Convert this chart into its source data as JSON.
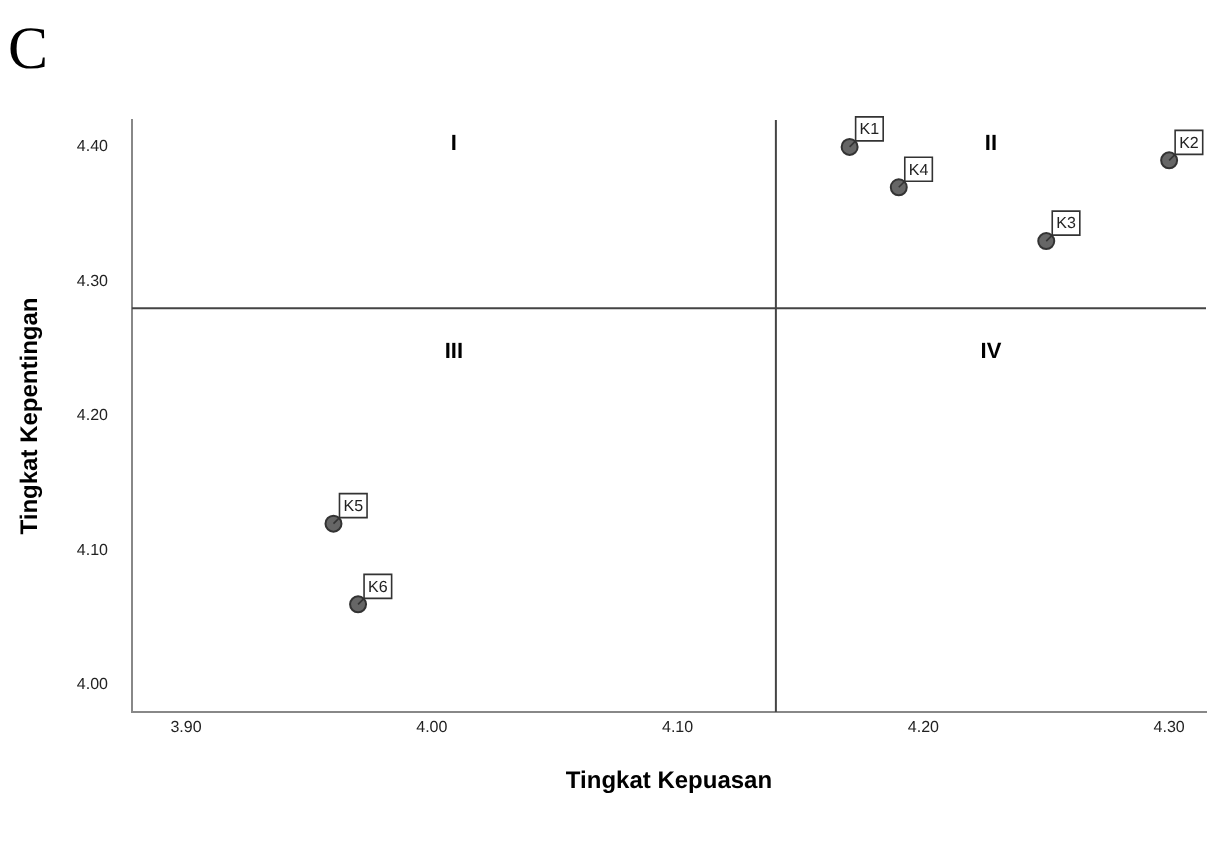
{
  "chart_data": {
    "type": "scatter",
    "title": "C",
    "xlabel": "Tingkat Kepuasan",
    "ylabel": "Tingkat Kepentingan",
    "x": [
      4.17,
      4.3,
      4.25,
      4.19,
      3.96,
      3.97
    ],
    "series": [
      {
        "color": "#666666",
        "values": [
          4.4,
          4.39,
          4.33,
          4.37,
          4.12,
          4.06
        ]
      }
    ],
    "xlim": [
      3.878,
      4.315
    ],
    "xticks": [
      {
        "value": 3.9,
        "label": "3.90"
      },
      {
        "value": 4.0,
        "label": "4.00"
      },
      {
        "value": 4.1,
        "label": "4.10"
      },
      {
        "value": 4.2,
        "label": "4.20"
      },
      {
        "value": 4.3,
        "label": "4.30"
      }
    ],
    "ylim": [
      3.98,
      4.42
    ],
    "yticks": [
      {
        "value": 4.0,
        "label": "4.00"
      },
      {
        "value": 4.1,
        "label": "4.10"
      },
      {
        "value": 4.2,
        "label": "4.20"
      },
      {
        "value": 4.3,
        "label": "4.30"
      },
      {
        "value": 4.4,
        "label": "4.40"
      }
    ],
    "ref_lines": [
      {
        "axis": "x",
        "value": 4.14,
        "color": "#444444"
      },
      {
        "axis": "y",
        "value": 4.28,
        "color": "#444444"
      }
    ],
    "annotations": [
      "I",
      "II",
      "III",
      "IV",
      {
        "text": "K1",
        "x": 4.17,
        "y": 4.4
      },
      {
        "text": "K2",
        "x": 4.3,
        "y": 4.39
      },
      {
        "text": "K3",
        "x": 4.25,
        "y": 4.33
      },
      {
        "text": "K4",
        "x": 4.19,
        "y": 4.37
      },
      {
        "text": "K5",
        "x": 3.96,
        "y": 4.12
      },
      {
        "text": "K6",
        "x": 3.97,
        "y": 4.06
      }
    ],
    "marker": "circle",
    "grid": false,
    "legend": false
  }
}
